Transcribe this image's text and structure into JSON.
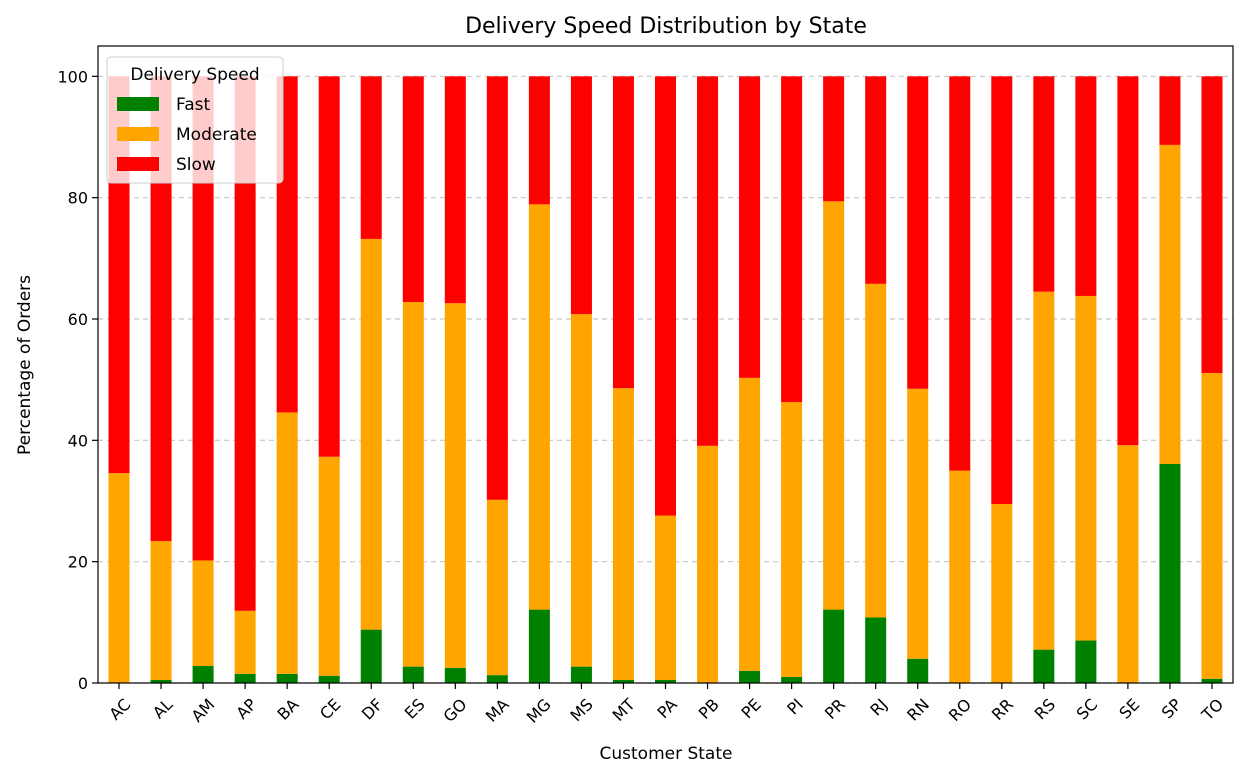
{
  "chart_data": {
    "type": "bar",
    "stacked": true,
    "title": "Delivery Speed Distribution by State",
    "xlabel": "Customer State",
    "ylabel": "Percentage of Orders",
    "ylim": [
      0,
      105
    ],
    "yticks": [
      0,
      20,
      40,
      60,
      80,
      100
    ],
    "grid": "y-dashed",
    "legend": {
      "title": "Delivery Speed",
      "placement": "top-left"
    },
    "categories": [
      "AC",
      "AL",
      "AM",
      "AP",
      "BA",
      "CE",
      "DF",
      "ES",
      "GO",
      "MA",
      "MG",
      "MS",
      "MT",
      "PA",
      "PB",
      "PE",
      "PI",
      "PR",
      "RJ",
      "RN",
      "RO",
      "RR",
      "RS",
      "SC",
      "SE",
      "SP",
      "TO"
    ],
    "series": [
      {
        "name": "Fast",
        "color": "#008000",
        "values": [
          0,
          0.5,
          2.8,
          1.5,
          1.5,
          1.2,
          8.8,
          2.7,
          2.5,
          1.3,
          12.1,
          2.7,
          0.5,
          0.5,
          0,
          2.0,
          1.0,
          12.1,
          10.8,
          4.0,
          0,
          0,
          5.5,
          7.0,
          0,
          36.1,
          0.7
        ]
      },
      {
        "name": "Moderate",
        "color": "#ffa500",
        "values": [
          34.6,
          22.9,
          17.4,
          10.4,
          43.1,
          36.1,
          64.4,
          60.1,
          60.1,
          28.9,
          66.8,
          58.1,
          48.1,
          27.1,
          39.1,
          48.3,
          45.3,
          67.3,
          55.0,
          44.5,
          35.0,
          29.5,
          59.0,
          56.8,
          39.2,
          52.6,
          50.4
        ]
      },
      {
        "name": "Slow",
        "color": "#ff0000",
        "values": [
          65.4,
          76.6,
          79.8,
          88.1,
          55.4,
          62.7,
          26.8,
          37.2,
          37.4,
          69.8,
          21.1,
          39.2,
          51.4,
          72.4,
          60.9,
          49.7,
          53.7,
          20.6,
          34.2,
          51.5,
          65.0,
          70.5,
          35.5,
          36.2,
          60.8,
          11.3,
          48.9
        ]
      }
    ]
  }
}
